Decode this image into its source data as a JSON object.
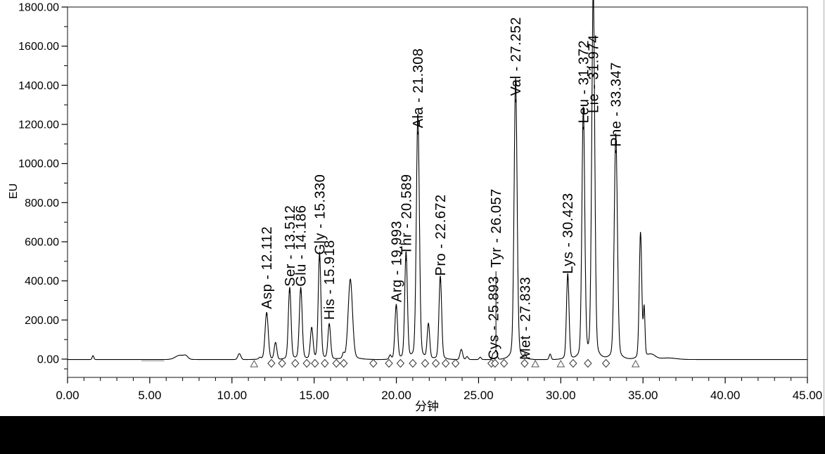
{
  "figure": {
    "background": "#ffffff",
    "bottom_bar_color": "#000000",
    "outer_border_color": "#aaaaaa"
  },
  "chart_data": {
    "type": "line",
    "title": "",
    "xlabel": "分钟",
    "ylabel": "EU",
    "xlim": [
      0,
      45
    ],
    "ylim": [
      -100,
      1800
    ],
    "grid": false,
    "legend": false,
    "trace_color": "#000000",
    "x_major_tick_interval": 5,
    "x_minor_tick_interval": 1,
    "y_major_tick_interval": 200,
    "y_minor_tick_interval": 100,
    "x_tick_labels": [
      "0.00",
      "5.00",
      "10.00",
      "15.00",
      "20.00",
      "25.00",
      "30.00",
      "35.00",
      "40.00",
      "45.00"
    ],
    "y_tick_labels": [
      "0.00",
      "200.00",
      "400.00",
      "600.00",
      "800.00",
      "1000.00",
      "1200.00",
      "1400.00",
      "1600.00",
      "1800.00"
    ],
    "peaks": [
      {
        "name": "Asp",
        "label": "Asp - 12.112",
        "time_min": 12.112,
        "height_eu": 220,
        "sigma_min": 0.095
      },
      {
        "name": "Ser",
        "label": "Ser - 13.512",
        "time_min": 13.512,
        "height_eu": 335,
        "sigma_min": 0.08
      },
      {
        "name": "Glu",
        "label": "Glu - 14.186",
        "time_min": 14.186,
        "height_eu": 335,
        "sigma_min": 0.085
      },
      {
        "name": "Gly",
        "label": "Gly - 15.330",
        "time_min": 15.33,
        "height_eu": 497,
        "sigma_min": 0.08
      },
      {
        "name": "His",
        "label": "His - 15.918",
        "time_min": 15.918,
        "height_eu": 165,
        "sigma_min": 0.08
      },
      {
        "name": "Arg",
        "label": "Arg - 19.993",
        "time_min": 19.993,
        "height_eu": 255,
        "sigma_min": 0.08
      },
      {
        "name": "Thr",
        "label": "Thr - 20.589",
        "time_min": 20.589,
        "height_eu": 498,
        "sigma_min": 0.08
      },
      {
        "name": "Ala",
        "label": "Ala - 21.308",
        "time_min": 21.308,
        "height_eu": 1145,
        "sigma_min": 0.09
      },
      {
        "name": "Pro",
        "label": "Pro - 22.672",
        "time_min": 22.672,
        "height_eu": 390,
        "sigma_min": 0.08
      },
      {
        "name": "Cys",
        "label": "Cys - 25.893",
        "time_min": 25.893,
        "height_eu": 30,
        "sigma_min": 0.06
      },
      {
        "name": "Tyr",
        "label": "Tyr - 26.057",
        "time_min": 26.057,
        "height_eu": 48,
        "sigma_min": 0.07
      },
      {
        "name": "Val",
        "label": "Val - 27.252",
        "time_min": 27.252,
        "height_eu": 1310,
        "sigma_min": 0.09
      },
      {
        "name": "Met",
        "label": "Met - 27.833",
        "time_min": 27.833,
        "height_eu": 20,
        "sigma_min": 0.06
      },
      {
        "name": "Lys",
        "label": "Lys - 30.423",
        "time_min": 30.423,
        "height_eu": 400,
        "sigma_min": 0.075
      },
      {
        "name": "Leu",
        "label": "Leu - 31.372",
        "time_min": 31.372,
        "height_eu": 1170,
        "sigma_min": 0.085
      },
      {
        "name": "Lie",
        "label": "Lie - 31.974",
        "time_min": 31.974,
        "height_eu": 1720,
        "sigma_min": 0.09
      },
      {
        "name": "Phe",
        "label": "Phe - 33.347",
        "time_min": 33.347,
        "height_eu": 1050,
        "sigma_min": 0.095
      }
    ],
    "unlabeled_peaks": [
      {
        "time_min": 1.55,
        "height_eu": 20,
        "sigma_min": 0.05
      },
      {
        "time_min": 6.85,
        "height_eu": 22,
        "sigma_min": 0.28
      },
      {
        "time_min": 7.2,
        "height_eu": 12,
        "sigma_min": 0.12
      },
      {
        "time_min": 10.45,
        "height_eu": 30,
        "sigma_min": 0.09
      },
      {
        "time_min": 11.7,
        "height_eu": 8,
        "sigma_min": 0.07
      },
      {
        "time_min": 12.65,
        "height_eu": 85,
        "sigma_min": 0.08
      },
      {
        "time_min": 14.85,
        "height_eu": 145,
        "sigma_min": 0.08
      },
      {
        "time_min": 16.78,
        "height_eu": 25,
        "sigma_min": 0.06
      },
      {
        "time_min": 17.2,
        "height_eu": 375,
        "sigma_min": 0.13
      },
      {
        "time_min": 19.62,
        "height_eu": 20,
        "sigma_min": 0.06
      },
      {
        "time_min": 21.95,
        "height_eu": 163,
        "sigma_min": 0.075
      },
      {
        "time_min": 23.95,
        "height_eu": 52,
        "sigma_min": 0.08
      },
      {
        "time_min": 24.3,
        "height_eu": 15,
        "sigma_min": 0.07
      },
      {
        "time_min": 25.1,
        "height_eu": 12,
        "sigma_min": 0.06
      },
      {
        "time_min": 29.35,
        "height_eu": 28,
        "sigma_min": 0.06
      },
      {
        "time_min": 34.85,
        "height_eu": 590,
        "sigma_min": 0.075
      },
      {
        "time_min": 35.07,
        "height_eu": 225,
        "sigma_min": 0.05
      },
      {
        "time_min": 35.5,
        "height_eu": 25,
        "sigma_min": 0.25
      },
      {
        "time_min": 36.5,
        "height_eu": 8,
        "sigma_min": 0.5
      }
    ],
    "integration_markers": {
      "triangle_times_min": [
        11.35,
        28.45,
        30.0,
        34.55
      ],
      "diamond_times_min": [
        12.4,
        13.05,
        13.85,
        14.55,
        15.05,
        15.65,
        16.35,
        16.8,
        18.6,
        19.55,
        20.25,
        21.0,
        21.75,
        22.4,
        23.0,
        23.6,
        25.78,
        26.0,
        26.55,
        27.8,
        30.75,
        31.65,
        32.75
      ]
    },
    "baseline_artifact": {
      "from_min": 4.5,
      "to_min": 5.9,
      "color": "#b4b4b4"
    }
  }
}
